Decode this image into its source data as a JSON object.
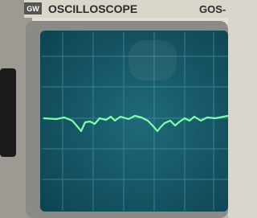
{
  "brand": "GW",
  "title": "OSCILLOSCOPE",
  "model": "GOS-"
}
